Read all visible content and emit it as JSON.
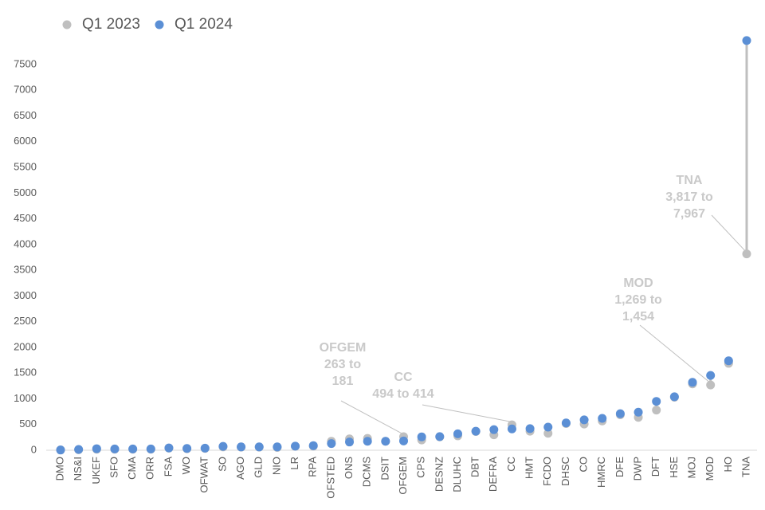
{
  "chart_data": {
    "type": "dot",
    "categories": [
      "DMO",
      "NS&I",
      "UKEF",
      "SFO",
      "CMA",
      "ORR",
      "FSA",
      "WO",
      "OFWAT",
      "SO",
      "AGO",
      "GLD",
      "NIO",
      "LR",
      "RPA",
      "OFSTED",
      "ONS",
      "DCMS",
      "DSIT",
      "OFGEM",
      "CPS",
      "DESNZ",
      "DLUHC",
      "DBT",
      "DEFRA",
      "CC",
      "HMT",
      "FCDO",
      "DHSC",
      "CO",
      "HMRC",
      "DFE",
      "DWP",
      "DFT",
      "HSE",
      "MOJ",
      "MOD",
      "HO",
      "TNA"
    ],
    "series": [
      {
        "name": "Q1 2023",
        "color": "#bfbfbf",
        "values": [
          5,
          10,
          20,
          20,
          20,
          20,
          40,
          30,
          35,
          65,
          60,
          60,
          55,
          75,
          80,
          175,
          220,
          230,
          175,
          263,
          200,
          260,
          280,
          365,
          300,
          494,
          370,
          330,
          520,
          510,
          570,
          690,
          640,
          780,
          1030,
          1290,
          1269,
          1690,
          3817
        ]
      },
      {
        "name": "Q1 2024",
        "color": "#5b8fd5",
        "values": [
          5,
          15,
          30,
          25,
          25,
          25,
          45,
          35,
          40,
          75,
          65,
          65,
          65,
          80,
          90,
          130,
          160,
          175,
          175,
          181,
          260,
          265,
          320,
          370,
          400,
          414,
          420,
          450,
          530,
          590,
          620,
          710,
          740,
          950,
          1040,
          1320,
          1454,
          1740,
          7967
        ]
      }
    ],
    "ylim": [
      0,
      8000
    ],
    "yticks": [
      0,
      500,
      1000,
      1500,
      2000,
      2500,
      3000,
      3500,
      4000,
      4500,
      5000,
      5500,
      6000,
      6500,
      7000,
      7500
    ],
    "legend": "top-left",
    "annotations": [
      {
        "category": "OFGEM",
        "text": [
          "OFGEM",
          "263 to",
          "181"
        ]
      },
      {
        "category": "CC",
        "text": [
          "CC",
          "494 to 414"
        ]
      },
      {
        "category": "MOD",
        "text": [
          "MOD",
          "1,269 to",
          "1,454"
        ]
      },
      {
        "category": "TNA",
        "text": [
          "TNA",
          "3,817 to",
          "7,967"
        ]
      }
    ]
  }
}
